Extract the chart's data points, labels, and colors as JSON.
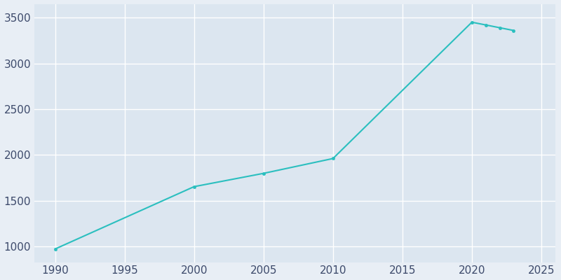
{
  "years": [
    1990,
    2000,
    2005,
    2010,
    2020,
    2021,
    2022,
    2023
  ],
  "population": [
    975,
    1655,
    1800,
    1962,
    3450,
    3420,
    3390,
    3360
  ],
  "line_color": "#2BBFBF",
  "marker": "o",
  "marker_size": 3,
  "line_width": 1.5,
  "fig_bg_color": "#E8EEF5",
  "plot_bg_color": "#DCE6F0",
  "grid_color": "#FFFFFF",
  "xlim": [
    1988.5,
    2026
  ],
  "ylim": [
    830,
    3650
  ],
  "xticks": [
    1990,
    1995,
    2000,
    2005,
    2010,
    2015,
    2020,
    2025
  ],
  "yticks": [
    1000,
    1500,
    2000,
    2500,
    3000,
    3500
  ],
  "tick_label_color": "#3D4A6B",
  "tick_fontsize": 11
}
